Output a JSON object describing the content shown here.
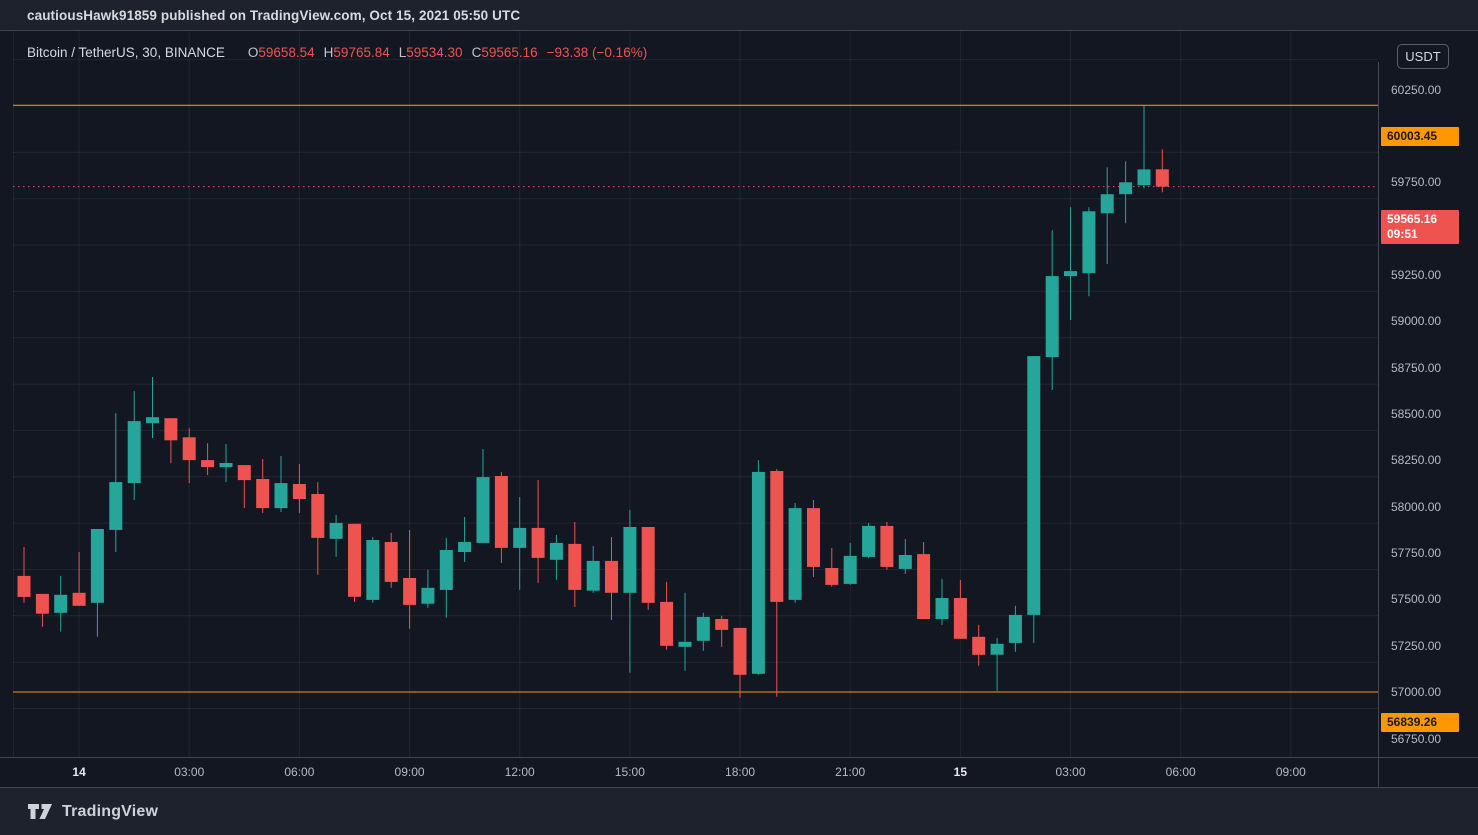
{
  "attribution": {
    "text": "cautiousHawk91859 published on TradingView.com, Oct 15, 2021 05:50 UTC"
  },
  "legend": {
    "symbol": "Bitcoin / TetherUS, 30, BINANCE",
    "ohlc": [
      {
        "label": "O",
        "value": "59658.54"
      },
      {
        "label": "H",
        "value": "59765.84"
      },
      {
        "label": "L",
        "value": "59534.30"
      },
      {
        "label": "C",
        "value": "59565.16"
      }
    ],
    "change": "−93.38 (−0.16%)"
  },
  "axis": {
    "currency_button": "USDT"
  },
  "footer": {
    "brand": "TradingView"
  },
  "colors": {
    "up": "#26a69a",
    "down": "#ef5350",
    "accent_orange": "#ff9800",
    "badge_red": "#ef5350",
    "bg_pane": "#131722",
    "bg_bar": "#1e222d",
    "grid": "rgba(240,243,250,0.065)",
    "axis_text": "#b7bac1",
    "border": "#434651"
  },
  "chart_data": {
    "type": "candlestick",
    "title": "Bitcoin / TetherUS, 30, BINANCE",
    "interval_minutes": 30,
    "y_axis": {
      "visible_min": 56750,
      "visible_max": 60250,
      "tick_step": 250,
      "grid": true
    },
    "price_ticks": [
      {
        "text": "60250.00",
        "price": 60250
      },
      {
        "text": "59750.00",
        "price": 59750
      },
      {
        "text": "59250.00",
        "price": 59250
      },
      {
        "text": "59000.00",
        "price": 59000
      },
      {
        "text": "58750.00",
        "price": 58750
      },
      {
        "text": "58500.00",
        "price": 58500
      },
      {
        "text": "58250.00",
        "price": 58250
      },
      {
        "text": "58000.00",
        "price": 58000
      },
      {
        "text": "57750.00",
        "price": 57750
      },
      {
        "text": "57500.00",
        "price": 57500
      },
      {
        "text": "57250.00",
        "price": 57250
      },
      {
        "text": "57000.00",
        "price": 57000
      },
      {
        "text": "56750.00",
        "price": 56750
      }
    ],
    "time_ticks": [
      {
        "label": "14",
        "index": 3,
        "major": true
      },
      {
        "label": "03:00",
        "index": 9
      },
      {
        "label": "06:00",
        "index": 15
      },
      {
        "label": "09:00",
        "index": 21
      },
      {
        "label": "12:00",
        "index": 27
      },
      {
        "label": "15:00",
        "index": 33
      },
      {
        "label": "18:00",
        "index": 39
      },
      {
        "label": "21:00",
        "index": 45
      },
      {
        "label": "15",
        "index": 51,
        "major": true
      },
      {
        "label": "03:00",
        "index": 57
      },
      {
        "label": "06:00",
        "index": 63
      },
      {
        "label": "09:00",
        "index": 69
      }
    ],
    "levels": [
      {
        "price": 60003.45,
        "label": "60003.45",
        "style": "solid",
        "color": "orange"
      },
      {
        "price": 59565.16,
        "label": "59565.16",
        "sublabel": "09:51",
        "style": "dotted",
        "color": "red"
      },
      {
        "price": 56839.26,
        "label": "56839.26",
        "style": "solid",
        "color": "orange"
      }
    ],
    "candles_format": [
      "open",
      "high",
      "low",
      "close"
    ],
    "candles": [
      [
        57465,
        57621,
        57320,
        57352
      ],
      [
        57368,
        57368,
        57191,
        57261
      ],
      [
        57266,
        57465,
        57164,
        57363
      ],
      [
        57374,
        57594,
        57304,
        57304
      ],
      [
        57320,
        57718,
        57137,
        57718
      ],
      [
        57713,
        58343,
        57594,
        57971
      ],
      [
        57966,
        58462,
        57874,
        58300
      ],
      [
        58289,
        58538,
        58209,
        58321
      ],
      [
        58316,
        58316,
        58073,
        58197
      ],
      [
        58213,
        58262,
        57966,
        58090
      ],
      [
        58090,
        58181,
        58009,
        58052
      ],
      [
        58052,
        58176,
        57971,
        58074
      ],
      [
        58063,
        58063,
        57832,
        57982
      ],
      [
        57988,
        58095,
        57805,
        57831
      ],
      [
        57831,
        58112,
        57810,
        57966
      ],
      [
        57961,
        58068,
        57805,
        57880
      ],
      [
        57907,
        57971,
        57471,
        57670
      ],
      [
        57665,
        57794,
        57568,
        57751
      ],
      [
        57746,
        57746,
        57325,
        57352
      ],
      [
        57336,
        57675,
        57320,
        57659
      ],
      [
        57648,
        57697,
        57401,
        57433
      ],
      [
        57454,
        57713,
        57180,
        57309
      ],
      [
        57315,
        57498,
        57293,
        57401
      ],
      [
        57390,
        57670,
        57239,
        57605
      ],
      [
        57594,
        57783,
        57540,
        57648
      ],
      [
        57643,
        58149,
        57643,
        57998
      ],
      [
        58004,
        58025,
        57535,
        57616
      ],
      [
        57616,
        57891,
        57390,
        57724
      ],
      [
        57724,
        57982,
        57428,
        57562
      ],
      [
        57552,
        57686,
        57444,
        57643
      ],
      [
        57638,
        57756,
        57298,
        57390
      ],
      [
        57385,
        57627,
        57374,
        57546
      ],
      [
        57546,
        57675,
        57228,
        57374
      ],
      [
        57374,
        57821,
        56943,
        57729
      ],
      [
        57729,
        57729,
        57282,
        57320
      ],
      [
        57325,
        57433,
        57067,
        57088
      ],
      [
        57083,
        57374,
        56954,
        57110
      ],
      [
        57115,
        57266,
        57061,
        57244
      ],
      [
        57233,
        57250,
        57083,
        57174
      ],
      [
        57185,
        57185,
        56808,
        56932
      ],
      [
        56937,
        58090,
        56932,
        58026
      ],
      [
        58031,
        58042,
        56813,
        57325
      ],
      [
        57336,
        57858,
        57320,
        57831
      ],
      [
        57831,
        57874,
        57460,
        57514
      ],
      [
        57508,
        57616,
        57406,
        57417
      ],
      [
        57422,
        57643,
        57417,
        57573
      ],
      [
        57568,
        57751,
        57562,
        57735
      ],
      [
        57735,
        57756,
        57498,
        57514
      ],
      [
        57503,
        57664,
        57476,
        57578
      ],
      [
        57583,
        57648,
        57233,
        57233
      ],
      [
        57233,
        57449,
        57201,
        57346
      ],
      [
        57346,
        57443,
        57126,
        57126
      ],
      [
        57137,
        57201,
        56981,
        57040
      ],
      [
        57040,
        57131,
        56845,
        57099
      ],
      [
        57104,
        57304,
        57056,
        57255
      ],
      [
        57255,
        58651,
        57104,
        58651
      ],
      [
        58645,
        59330,
        58468,
        59082
      ],
      [
        59082,
        59454,
        58845,
        59109
      ],
      [
        59098,
        59454,
        58974,
        59432
      ],
      [
        59421,
        59669,
        59147,
        59524
      ],
      [
        59524,
        59701,
        59367,
        59588
      ],
      [
        59572,
        60003,
        59556,
        59658
      ],
      [
        59658.54,
        59765.84,
        59534.3,
        59565.16
      ]
    ]
  }
}
